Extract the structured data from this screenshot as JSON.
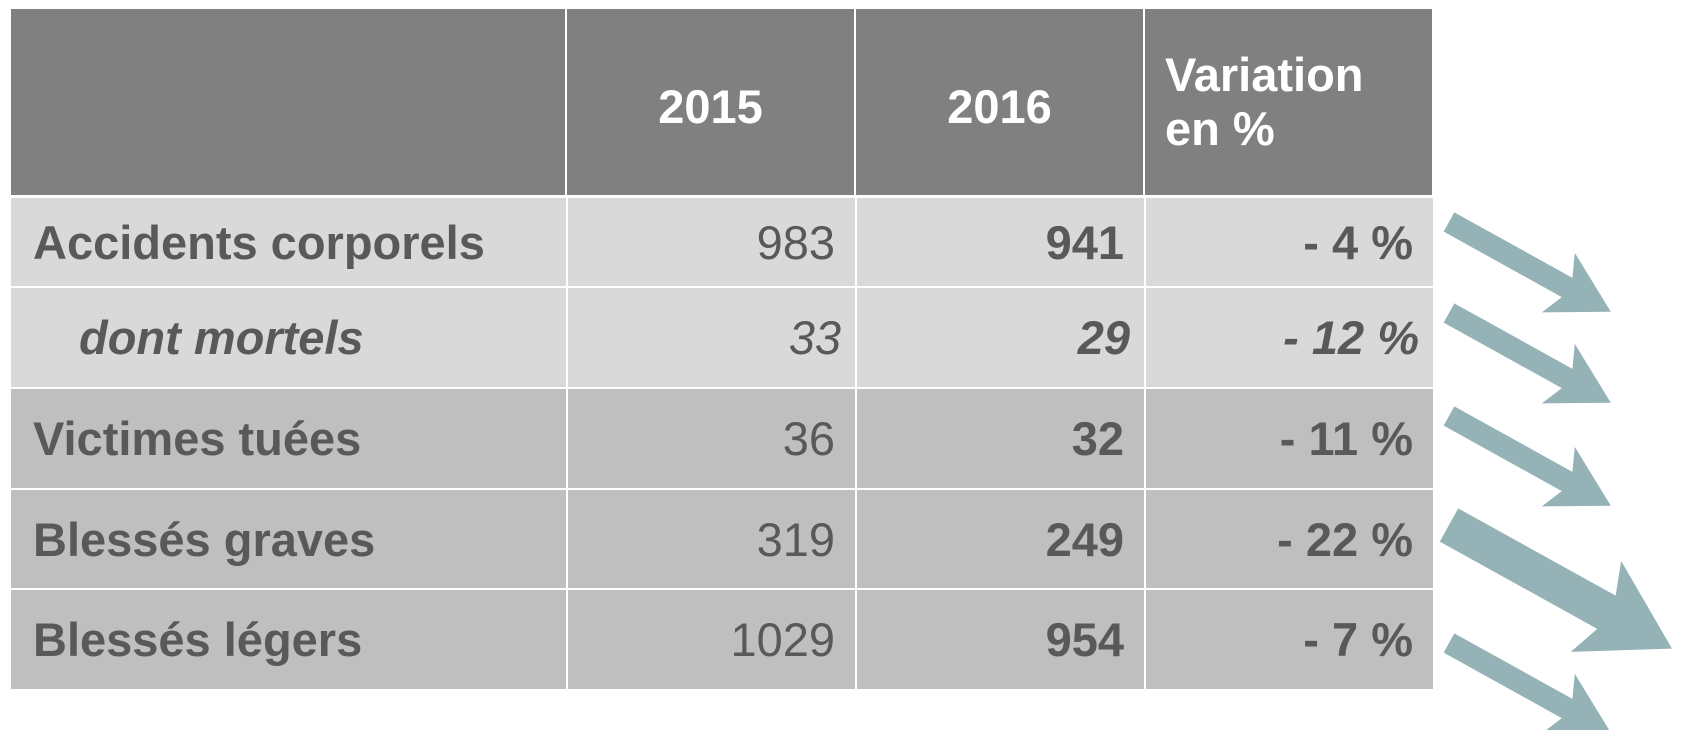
{
  "table": {
    "header": [
      "",
      "2015",
      "2016",
      "Variation en %"
    ],
    "rows": [
      [
        "Accidents corporels",
        "983",
        "941",
        "- 4 %"
      ],
      [
        "dont mortels",
        "33",
        "29",
        "- 12 %"
      ],
      [
        "Victimes tuées",
        "36",
        "32",
        "- 11 %"
      ],
      [
        "Blessés graves",
        "319",
        "249",
        "- 22 %"
      ],
      [
        "Blessés légers",
        "1029",
        "954",
        "- 7 %"
      ]
    ]
  }
}
